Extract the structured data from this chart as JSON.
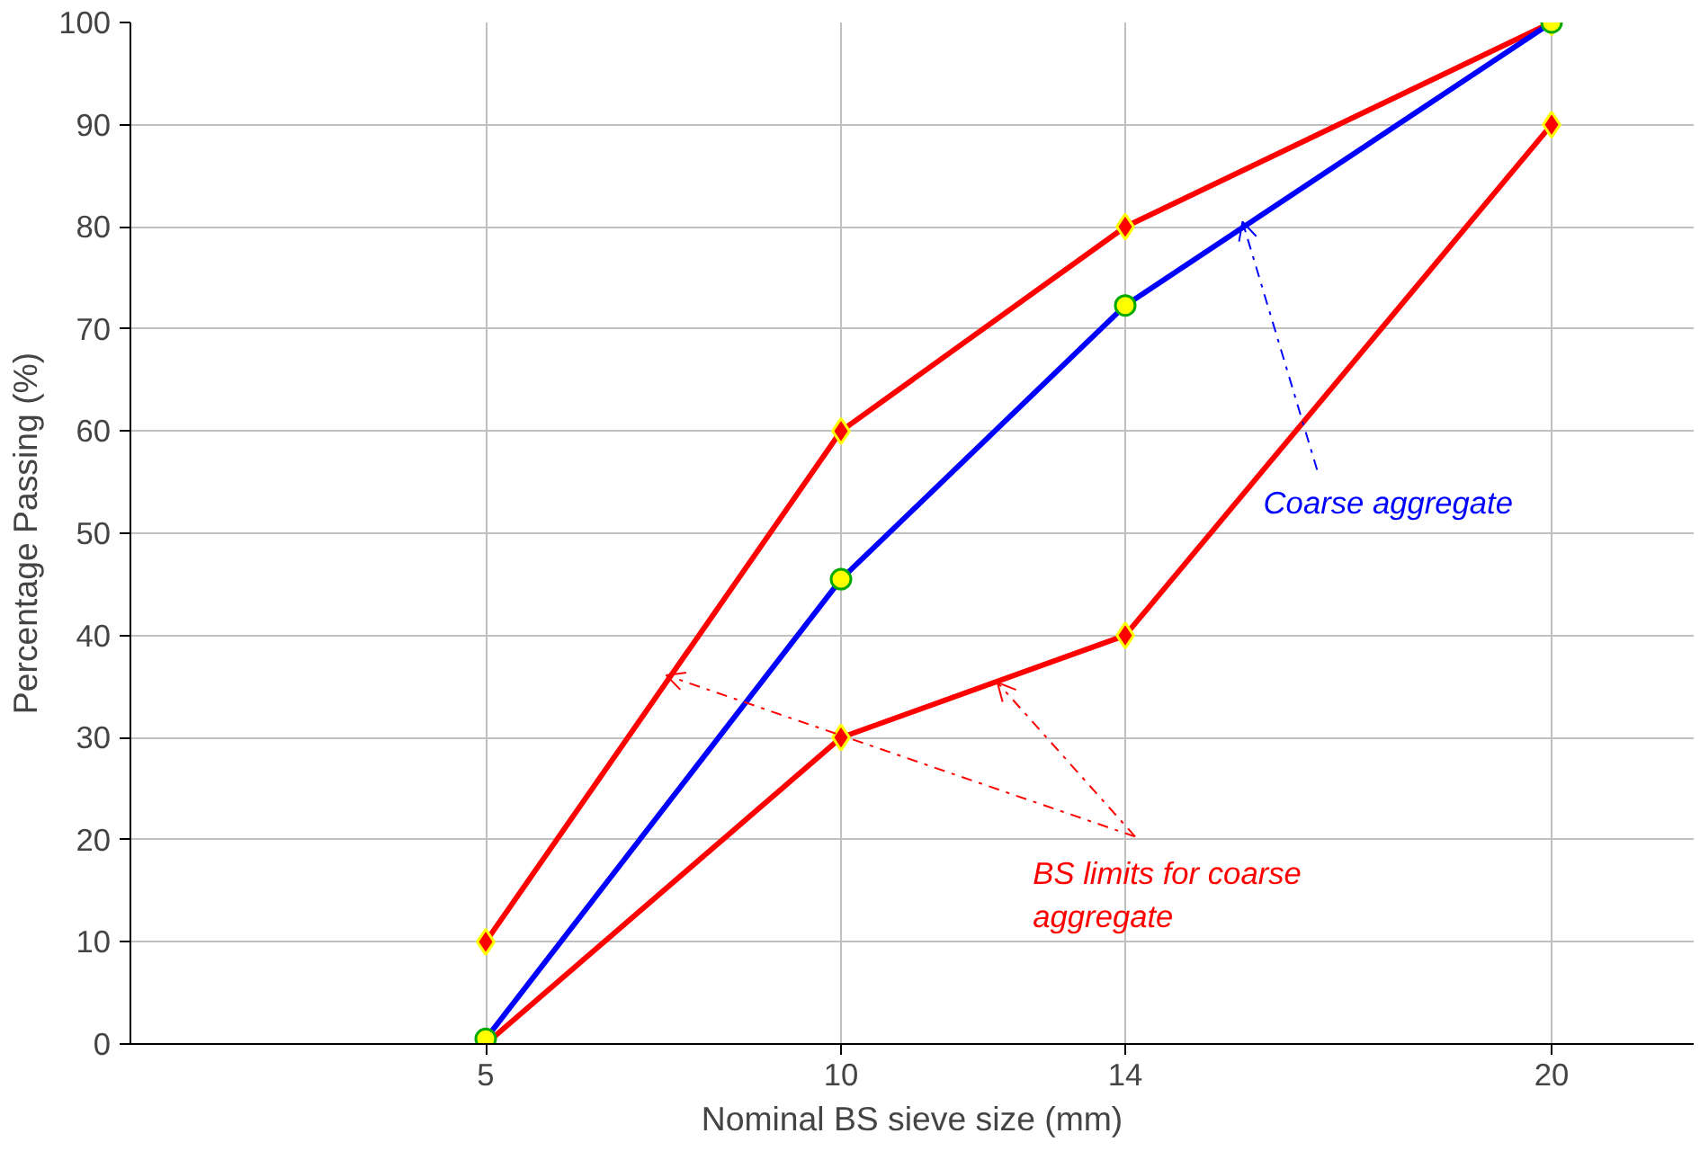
{
  "chart_data": {
    "type": "line",
    "xlabel": "Nominal BS sieve size (mm)",
    "ylabel": "Percentage Passing (%)",
    "x": [
      5,
      10,
      14,
      20
    ],
    "series": [
      {
        "color": "#ff0000",
        "values": [
          10,
          60,
          80,
          100
        ],
        "marker": "diamond"
      },
      {
        "color": "#ff0000",
        "values": [
          0,
          30,
          40,
          90
        ],
        "marker": "diamond"
      },
      {
        "color": "#0000ff",
        "values": [
          0.5,
          45.5,
          72.3,
          100
        ],
        "marker": "circle"
      }
    ],
    "xlim": [
      0,
      22
    ],
    "xticks": [
      5,
      10,
      14,
      20
    ],
    "ylim": [
      0,
      100
    ],
    "yticks": [
      0,
      10,
      20,
      30,
      40,
      50,
      60,
      70,
      80,
      90,
      100
    ],
    "grid": true,
    "line_style": "solid",
    "annotations": [
      {
        "text": "Coarse aggregate",
        "x": 15.65,
        "y": 80.5
      },
      {
        "text": "BS limits for coarse aggregate",
        "x": 7.54,
        "y": 36.1
      }
    ]
  }
}
